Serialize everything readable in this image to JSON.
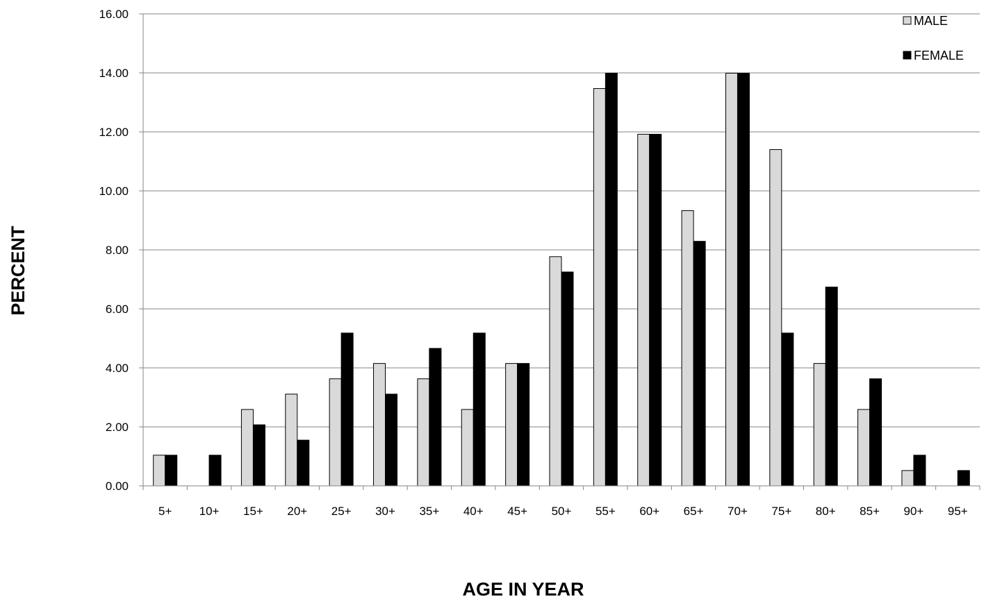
{
  "chart_data": {
    "type": "bar",
    "title": "",
    "xlabel": "AGE IN YEAR",
    "ylabel": "PERCENT",
    "ylim": [
      0,
      16
    ],
    "yticks": [
      "0.00",
      "2.00",
      "4.00",
      "6.00",
      "8.00",
      "10.00",
      "12.00",
      "14.00",
      "16.00"
    ],
    "grid": true,
    "legend_position": "top-right",
    "categories": [
      "5+",
      "10+",
      "15+",
      "20+",
      "25+",
      "30+",
      "35+",
      "40+",
      "45+",
      "50+",
      "55+",
      "60+",
      "65+",
      "70+",
      "75+",
      "80+",
      "85+",
      "90+",
      "95+"
    ],
    "series": [
      {
        "name": "MALE",
        "color": "#d9d9d9",
        "values": [
          1.04,
          0,
          2.59,
          3.11,
          3.63,
          4.15,
          3.63,
          2.59,
          4.15,
          7.77,
          13.47,
          11.92,
          9.33,
          13.99,
          11.4,
          4.15,
          2.59,
          0.52,
          0
        ]
      },
      {
        "name": "FEMALE",
        "color": "#000000",
        "values": [
          1.04,
          1.04,
          2.07,
          1.55,
          5.18,
          3.11,
          4.66,
          5.18,
          4.15,
          7.25,
          13.99,
          11.92,
          8.29,
          13.99,
          5.18,
          6.74,
          3.63,
          1.04,
          0.52
        ]
      }
    ]
  }
}
